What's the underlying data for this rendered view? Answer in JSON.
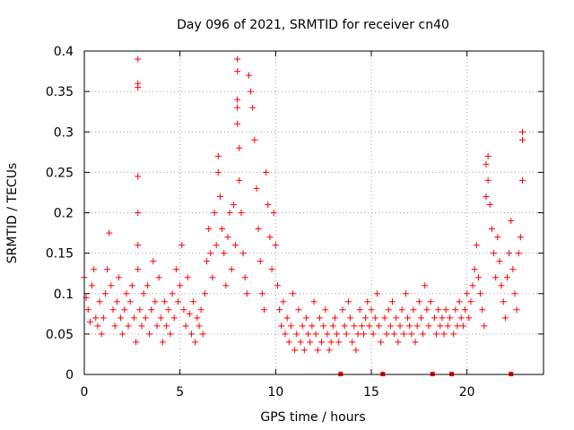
{
  "chart_data": {
    "type": "scatter",
    "title": "Day 096 of 2021, SRMTID for receiver cn40",
    "xlabel": "GPS time / hours",
    "ylabel": "SRMTID / TECUs",
    "xlim": [
      0,
      24
    ],
    "ylim": [
      0,
      0.4
    ],
    "x_ticks": [
      0,
      5,
      10,
      15,
      20
    ],
    "x_tick_labels": [
      "0",
      "5",
      "10",
      "15",
      "20"
    ],
    "y_ticks": [
      0,
      0.05,
      0.1,
      0.15,
      0.2,
      0.25,
      0.3,
      0.35,
      0.4
    ],
    "y_tick_labels": [
      "0",
      "0.05",
      "0.1",
      "0.15",
      "0.2",
      "0.25",
      "0.3",
      "0.35",
      "0.4"
    ],
    "grid": true,
    "marker": "+",
    "color": "#ff0000",
    "zero_markers_x": [
      13.4,
      15.6,
      18.2,
      19.2,
      22.3
    ],
    "series": [
      {
        "name": "SRMTID",
        "points": [
          [
            0.0,
            0.12
          ],
          [
            0.1,
            0.095
          ],
          [
            0.2,
            0.08
          ],
          [
            0.3,
            0.065
          ],
          [
            0.4,
            0.11
          ],
          [
            0.5,
            0.13
          ],
          [
            0.6,
            0.07
          ],
          [
            0.7,
            0.06
          ],
          [
            0.8,
            0.09
          ],
          [
            0.9,
            0.05
          ],
          [
            1.0,
            0.07
          ],
          [
            1.1,
            0.1
          ],
          [
            1.2,
            0.13
          ],
          [
            1.3,
            0.175
          ],
          [
            1.4,
            0.11
          ],
          [
            1.5,
            0.08
          ],
          [
            1.6,
            0.06
          ],
          [
            1.7,
            0.09
          ],
          [
            1.8,
            0.12
          ],
          [
            1.9,
            0.07
          ],
          [
            2.0,
            0.05
          ],
          [
            2.1,
            0.08
          ],
          [
            2.2,
            0.1
          ],
          [
            2.3,
            0.06
          ],
          [
            2.4,
            0.09
          ],
          [
            2.5,
            0.11
          ],
          [
            2.6,
            0.07
          ],
          [
            2.7,
            0.04
          ],
          [
            2.8,
            0.39
          ],
          [
            2.8,
            0.36
          ],
          [
            2.8,
            0.355
          ],
          [
            2.8,
            0.245
          ],
          [
            2.8,
            0.2
          ],
          [
            2.8,
            0.16
          ],
          [
            2.8,
            0.13
          ],
          [
            2.9,
            0.08
          ],
          [
            3.0,
            0.06
          ],
          [
            3.1,
            0.1
          ],
          [
            3.2,
            0.07
          ],
          [
            3.3,
            0.11
          ],
          [
            3.4,
            0.05
          ],
          [
            3.5,
            0.08
          ],
          [
            3.6,
            0.14
          ],
          [
            3.7,
            0.09
          ],
          [
            3.8,
            0.06
          ],
          [
            3.9,
            0.12
          ],
          [
            4.0,
            0.07
          ],
          [
            4.1,
            0.04
          ],
          [
            4.2,
            0.09
          ],
          [
            4.3,
            0.06
          ],
          [
            4.4,
            0.08
          ],
          [
            4.5,
            0.05
          ],
          [
            4.6,
            0.1
          ],
          [
            4.7,
            0.07
          ],
          [
            4.8,
            0.13
          ],
          [
            4.9,
            0.09
          ],
          [
            5.0,
            0.11
          ],
          [
            5.1,
            0.16
          ],
          [
            5.2,
            0.08
          ],
          [
            5.3,
            0.06
          ],
          [
            5.4,
            0.12
          ],
          [
            5.5,
            0.075
          ],
          [
            5.6,
            0.05
          ],
          [
            5.7,
            0.09
          ],
          [
            5.8,
            0.04
          ],
          [
            5.9,
            0.07
          ],
          [
            6.0,
            0.06
          ],
          [
            6.1,
            0.08
          ],
          [
            6.2,
            0.05
          ],
          [
            6.3,
            0.1
          ],
          [
            6.4,
            0.14
          ],
          [
            6.5,
            0.18
          ],
          [
            6.6,
            0.15
          ],
          [
            6.7,
            0.12
          ],
          [
            6.8,
            0.2
          ],
          [
            6.9,
            0.16
          ],
          [
            7.0,
            0.25
          ],
          [
            7.0,
            0.27
          ],
          [
            7.1,
            0.22
          ],
          [
            7.2,
            0.18
          ],
          [
            7.3,
            0.15
          ],
          [
            7.4,
            0.11
          ],
          [
            7.5,
            0.17
          ],
          [
            7.6,
            0.2
          ],
          [
            7.7,
            0.13
          ],
          [
            7.8,
            0.21
          ],
          [
            7.9,
            0.16
          ],
          [
            8.0,
            0.39
          ],
          [
            8.0,
            0.375
          ],
          [
            8.0,
            0.34
          ],
          [
            8.0,
            0.33
          ],
          [
            8.0,
            0.31
          ],
          [
            8.1,
            0.28
          ],
          [
            8.1,
            0.24
          ],
          [
            8.2,
            0.2
          ],
          [
            8.3,
            0.15
          ],
          [
            8.4,
            0.12
          ],
          [
            8.5,
            0.1
          ],
          [
            8.6,
            0.37
          ],
          [
            8.7,
            0.35
          ],
          [
            8.8,
            0.33
          ],
          [
            8.9,
            0.29
          ],
          [
            9.0,
            0.23
          ],
          [
            9.1,
            0.18
          ],
          [
            9.2,
            0.14
          ],
          [
            9.3,
            0.1
          ],
          [
            9.4,
            0.08
          ],
          [
            9.5,
            0.25
          ],
          [
            9.6,
            0.21
          ],
          [
            9.7,
            0.17
          ],
          [
            9.8,
            0.13
          ],
          [
            9.9,
            0.2
          ],
          [
            10.0,
            0.16
          ],
          [
            10.1,
            0.11
          ],
          [
            10.2,
            0.08
          ],
          [
            10.3,
            0.06
          ],
          [
            10.4,
            0.09
          ],
          [
            10.5,
            0.05
          ],
          [
            10.6,
            0.07
          ],
          [
            10.7,
            0.04
          ],
          [
            10.8,
            0.06
          ],
          [
            10.9,
            0.1
          ],
          [
            11.0,
            0.03
          ],
          [
            11.1,
            0.05
          ],
          [
            11.2,
            0.08
          ],
          [
            11.3,
            0.04
          ],
          [
            11.4,
            0.06
          ],
          [
            11.5,
            0.03
          ],
          [
            11.6,
            0.07
          ],
          [
            11.7,
            0.05
          ],
          [
            11.8,
            0.04
          ],
          [
            11.9,
            0.06
          ],
          [
            12.0,
            0.09
          ],
          [
            12.1,
            0.05
          ],
          [
            12.2,
            0.03
          ],
          [
            12.3,
            0.07
          ],
          [
            12.4,
            0.04
          ],
          [
            12.5,
            0.06
          ],
          [
            12.6,
            0.08
          ],
          [
            12.7,
            0.05
          ],
          [
            12.8,
            0.03
          ],
          [
            12.9,
            0.04
          ],
          [
            13.0,
            0.06
          ],
          [
            13.1,
            0.07
          ],
          [
            13.2,
            0.05
          ],
          [
            13.3,
            0.04
          ],
          [
            13.5,
            0.08
          ],
          [
            13.6,
            0.06
          ],
          [
            13.7,
            0.05
          ],
          [
            13.8,
            0.09
          ],
          [
            13.9,
            0.07
          ],
          [
            14.0,
            0.04
          ],
          [
            14.1,
            0.06
          ],
          [
            14.2,
            0.03
          ],
          [
            14.3,
            0.05
          ],
          [
            14.4,
            0.08
          ],
          [
            14.5,
            0.06
          ],
          [
            14.6,
            0.05
          ],
          [
            14.7,
            0.07
          ],
          [
            14.8,
            0.09
          ],
          [
            14.9,
            0.06
          ],
          [
            15.0,
            0.08
          ],
          [
            15.1,
            0.05
          ],
          [
            15.2,
            0.07
          ],
          [
            15.3,
            0.1
          ],
          [
            15.4,
            0.06
          ],
          [
            15.5,
            0.04
          ],
          [
            15.7,
            0.07
          ],
          [
            15.8,
            0.05
          ],
          [
            15.9,
            0.08
          ],
          [
            16.0,
            0.06
          ],
          [
            16.1,
            0.09
          ],
          [
            16.2,
            0.05
          ],
          [
            16.3,
            0.07
          ],
          [
            16.4,
            0.04
          ],
          [
            16.5,
            0.06
          ],
          [
            16.6,
            0.08
          ],
          [
            16.7,
            0.05
          ],
          [
            16.8,
            0.1
          ],
          [
            16.9,
            0.07
          ],
          [
            17.0,
            0.06
          ],
          [
            17.1,
            0.05
          ],
          [
            17.2,
            0.08
          ],
          [
            17.3,
            0.04
          ],
          [
            17.4,
            0.06
          ],
          [
            17.5,
            0.09
          ],
          [
            17.6,
            0.07
          ],
          [
            17.7,
            0.05
          ],
          [
            17.8,
            0.11
          ],
          [
            17.9,
            0.08
          ],
          [
            18.0,
            0.06
          ],
          [
            18.1,
            0.09
          ],
          [
            18.3,
            0.07
          ],
          [
            18.4,
            0.05
          ],
          [
            18.5,
            0.08
          ],
          [
            18.6,
            0.06
          ],
          [
            18.7,
            0.07
          ],
          [
            18.8,
            0.05
          ],
          [
            18.9,
            0.08
          ],
          [
            19.0,
            0.06
          ],
          [
            19.1,
            0.07
          ],
          [
            19.3,
            0.05
          ],
          [
            19.4,
            0.08
          ],
          [
            19.5,
            0.06
          ],
          [
            19.6,
            0.09
          ],
          [
            19.7,
            0.07
          ],
          [
            19.8,
            0.06
          ],
          [
            19.9,
            0.08
          ],
          [
            20.0,
            0.1
          ],
          [
            20.1,
            0.07
          ],
          [
            20.2,
            0.09
          ],
          [
            20.3,
            0.11
          ],
          [
            20.4,
            0.13
          ],
          [
            20.5,
            0.16
          ],
          [
            20.6,
            0.12
          ],
          [
            20.7,
            0.1
          ],
          [
            20.8,
            0.08
          ],
          [
            20.9,
            0.06
          ],
          [
            21.0,
            0.22
          ],
          [
            21.0,
            0.26
          ],
          [
            21.1,
            0.27
          ],
          [
            21.1,
            0.24
          ],
          [
            21.2,
            0.21
          ],
          [
            21.3,
            0.18
          ],
          [
            21.4,
            0.15
          ],
          [
            21.5,
            0.12
          ],
          [
            21.6,
            0.17
          ],
          [
            21.7,
            0.14
          ],
          [
            21.8,
            0.11
          ],
          [
            21.9,
            0.09
          ],
          [
            22.0,
            0.07
          ],
          [
            22.1,
            0.12
          ],
          [
            22.2,
            0.15
          ],
          [
            22.3,
            0.19
          ],
          [
            22.4,
            0.13
          ],
          [
            22.5,
            0.1
          ],
          [
            22.6,
            0.08
          ],
          [
            22.7,
            0.15
          ],
          [
            22.8,
            0.17
          ],
          [
            22.9,
            0.3
          ],
          [
            22.9,
            0.29
          ],
          [
            22.9,
            0.24
          ]
        ]
      }
    ]
  }
}
